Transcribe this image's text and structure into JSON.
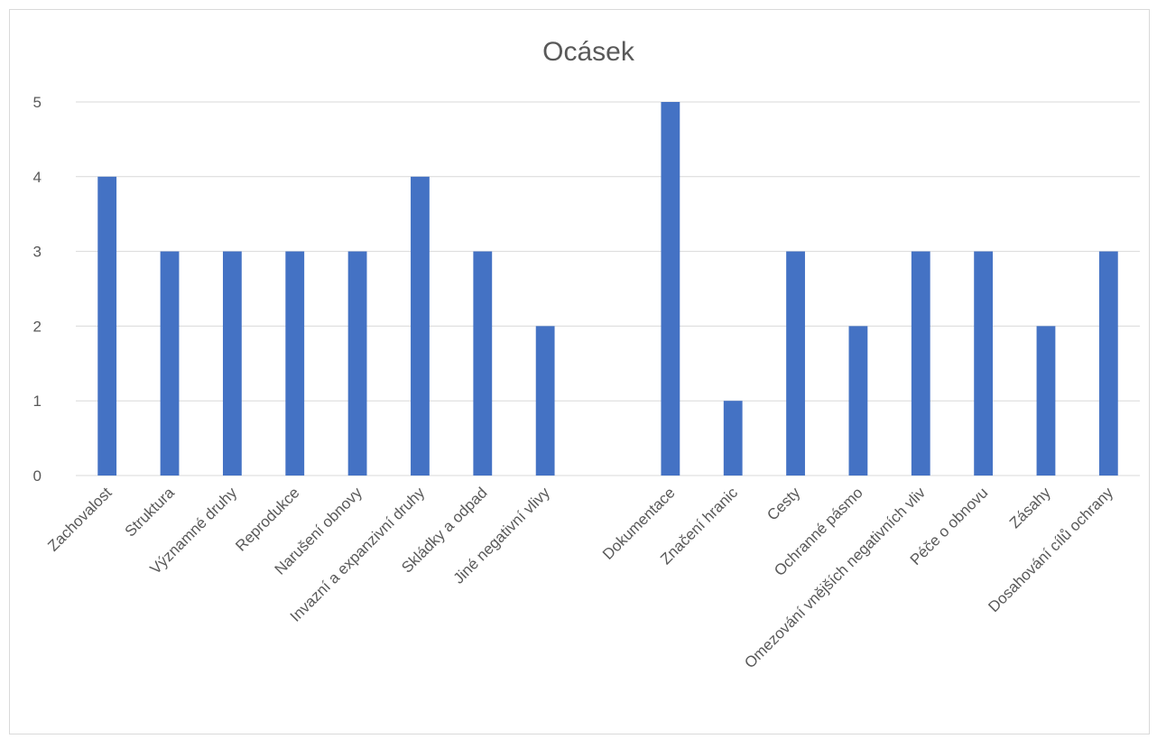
{
  "chart_data": {
    "type": "bar",
    "title": "Ocásek",
    "categories": [
      "Zachovalost",
      "Struktura",
      "Významné druhy",
      "Reprodukce",
      "Narušení obnovy",
      "Invazní a expanzivní druhy",
      "Skládky a odpad",
      "Jiné negativní vlivy",
      "",
      "Dokumentace",
      "Značení hranic",
      "Cesty",
      "Ochranné pásmo",
      "Omezování vnějších negativních vliv",
      "Péče o obnovu",
      "Zásahy",
      "Dosahování cílů ochrany"
    ],
    "values": [
      4,
      3,
      3,
      3,
      3,
      4,
      3,
      2,
      null,
      5,
      1,
      3,
      2,
      3,
      3,
      2,
      3
    ],
    "ylim": [
      0,
      5
    ],
    "yticks": [
      0,
      1,
      2,
      3,
      4,
      5
    ],
    "grid": true,
    "legend": "none",
    "bar_color": "#4472C4"
  }
}
